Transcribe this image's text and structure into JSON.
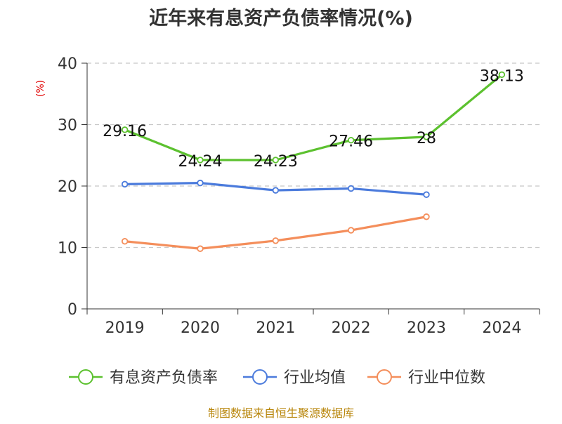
{
  "chart_data": {
    "type": "line",
    "title": "近年来有息资产负债率情况(%)",
    "ylabel": "(%)",
    "source": "制图数据来自恒生聚源数据库",
    "categories": [
      "2019",
      "2020",
      "2021",
      "2022",
      "2023",
      "2024"
    ],
    "ylim": [
      0,
      40
    ],
    "yticks": [
      0,
      10,
      20,
      30,
      40
    ],
    "grid": true,
    "legend_position": "bottom",
    "series": [
      {
        "name": "有息资产负债率",
        "color": "#5cc12f",
        "values": [
          29.16,
          24.24,
          24.23,
          27.46,
          28,
          38.13
        ],
        "labels": [
          "29.16",
          "24.24",
          "24.23",
          "27.46",
          "28",
          "38.13"
        ]
      },
      {
        "name": "行业均值",
        "color": "#4b7bdc",
        "values": [
          20.3,
          20.5,
          19.3,
          19.6,
          18.6,
          null
        ]
      },
      {
        "name": "行业中位数",
        "color": "#f48e5b",
        "values": [
          11.0,
          9.8,
          11.1,
          12.8,
          15.0,
          null
        ]
      }
    ]
  }
}
